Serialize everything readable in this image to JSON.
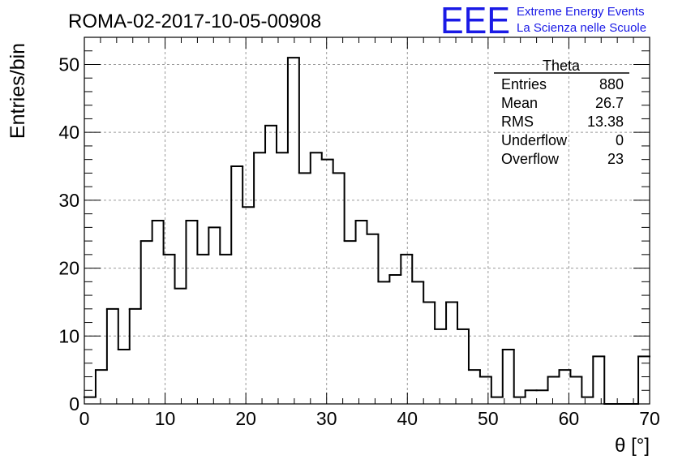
{
  "header": {
    "run_title": "ROMA-02-2017-10-05-00908",
    "logo_text": "EEE",
    "logo_line1": "Extreme Energy Events",
    "logo_line2": "La Scienza nelle Scuole",
    "logo_color": "#1a1ae6"
  },
  "stats_box": {
    "title": "Theta",
    "rows": [
      {
        "label": "Entries",
        "value": "880"
      },
      {
        "label": "Mean",
        "value": "26.7"
      },
      {
        "label": "RMS",
        "value": "13.38"
      },
      {
        "label": "Underflow",
        "value": "0"
      },
      {
        "label": "Overflow",
        "value": "23"
      }
    ]
  },
  "chart_data": {
    "type": "histogram",
    "title": "ROMA-02-2017-10-05-00908",
    "xlabel": "θ [°]",
    "ylabel": "Entries/bin",
    "xlim": [
      0,
      70
    ],
    "ylim": [
      0,
      54
    ],
    "bin_width": 1.4,
    "xticks": [
      0,
      10,
      20,
      30,
      40,
      50,
      60,
      70
    ],
    "yticks": [
      0,
      10,
      20,
      30,
      40,
      50
    ],
    "grid": true,
    "line_color": "#000000",
    "values": [
      1,
      5,
      14,
      8,
      14,
      24,
      27,
      22,
      17,
      27,
      22,
      26,
      22,
      35,
      29,
      37,
      41,
      37,
      51,
      34,
      37,
      36,
      34,
      24,
      27,
      25,
      18,
      19,
      22,
      18,
      15,
      11,
      15,
      11,
      5,
      4,
      1,
      8,
      1,
      2,
      2,
      4,
      5,
      4,
      1,
      7,
      0,
      0,
      0,
      7
    ]
  }
}
